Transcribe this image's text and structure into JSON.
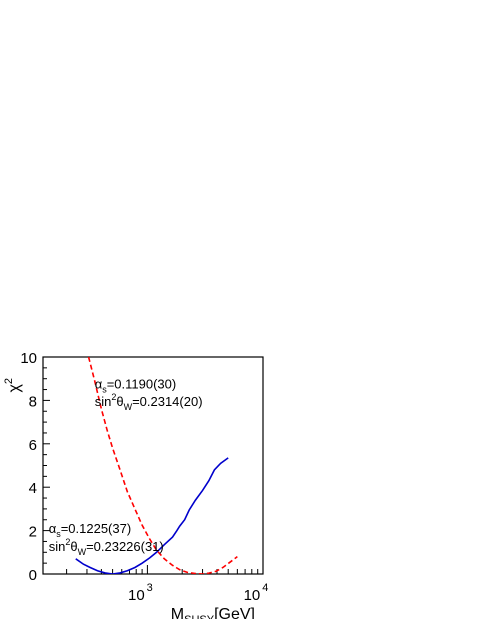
{
  "chart_data": {
    "type": "line",
    "title": "",
    "xlabel": {
      "main": "M",
      "sub": "SUSY",
      "unit": "[GeV]"
    },
    "ylabel": {
      "main": "χ",
      "sup": "2"
    },
    "xscale": "log",
    "xlim": [
      125,
      10000
    ],
    "ylim": [
      0,
      10
    ],
    "y_ticks": [
      0,
      2,
      4,
      6,
      8,
      10
    ],
    "y_tick_labels": [
      "0",
      "2",
      "4",
      "6",
      "8",
      "10"
    ],
    "x_tick_labels": [
      {
        "value": 1000,
        "base": "10",
        "exp": "3"
      },
      {
        "value": 10000,
        "base": "10",
        "exp": "4"
      }
    ],
    "grid": false,
    "series": [
      {
        "color": "#0000cc",
        "style": "solid",
        "x": [
          240,
          280,
          320,
          370,
          430,
          500,
          580,
          670,
          780,
          900,
          1050,
          1200,
          1400,
          1650,
          1800,
          1900,
          2100,
          2300,
          2600,
          3000,
          3400,
          3800,
          4300,
          5000
        ],
        "y": [
          0.7,
          0.45,
          0.3,
          0.15,
          0.05,
          0.0,
          0.05,
          0.15,
          0.3,
          0.5,
          0.75,
          1.0,
          1.35,
          1.7,
          2.0,
          2.2,
          2.5,
          2.95,
          3.4,
          3.85,
          4.3,
          4.8,
          5.1,
          5.35
        ]
      },
      {
        "color": "#ff0000",
        "style": "dashed",
        "x": [
          310,
          350,
          400,
          450,
          500,
          580,
          670,
          780,
          900,
          1050,
          1200,
          1400,
          1650,
          1900,
          2200,
          2600,
          3000,
          3400,
          3900,
          4500,
          5200,
          6000
        ],
        "y": [
          10.0,
          8.9,
          7.6,
          6.6,
          5.8,
          4.8,
          3.8,
          3.0,
          2.25,
          1.6,
          1.1,
          0.7,
          0.4,
          0.2,
          0.08,
          0.02,
          0.0,
          0.04,
          0.12,
          0.3,
          0.55,
          0.8
        ]
      }
    ],
    "annotations": [
      {
        "symbol": "α",
        "sub": "s",
        "value": "=0.1190(30)",
        "anchor_x": 350,
        "anchor_y": 8.55
      },
      {
        "prefix": "sin",
        "sup": "2",
        "symbol": "θ",
        "sub": "W",
        "value": "=0.2314(20)",
        "anchor_x": 350,
        "anchor_y": 7.75
      },
      {
        "symbol": "α",
        "sub": "s",
        "value": "=0.1225(37)",
        "anchor_x": 140,
        "anchor_y": 1.9
      },
      {
        "prefix": "sin",
        "sup": "2",
        "symbol": "θ",
        "sub": "W",
        "value": "=0.23226(31)",
        "anchor_x": 140,
        "anchor_y": 1.05
      }
    ]
  }
}
